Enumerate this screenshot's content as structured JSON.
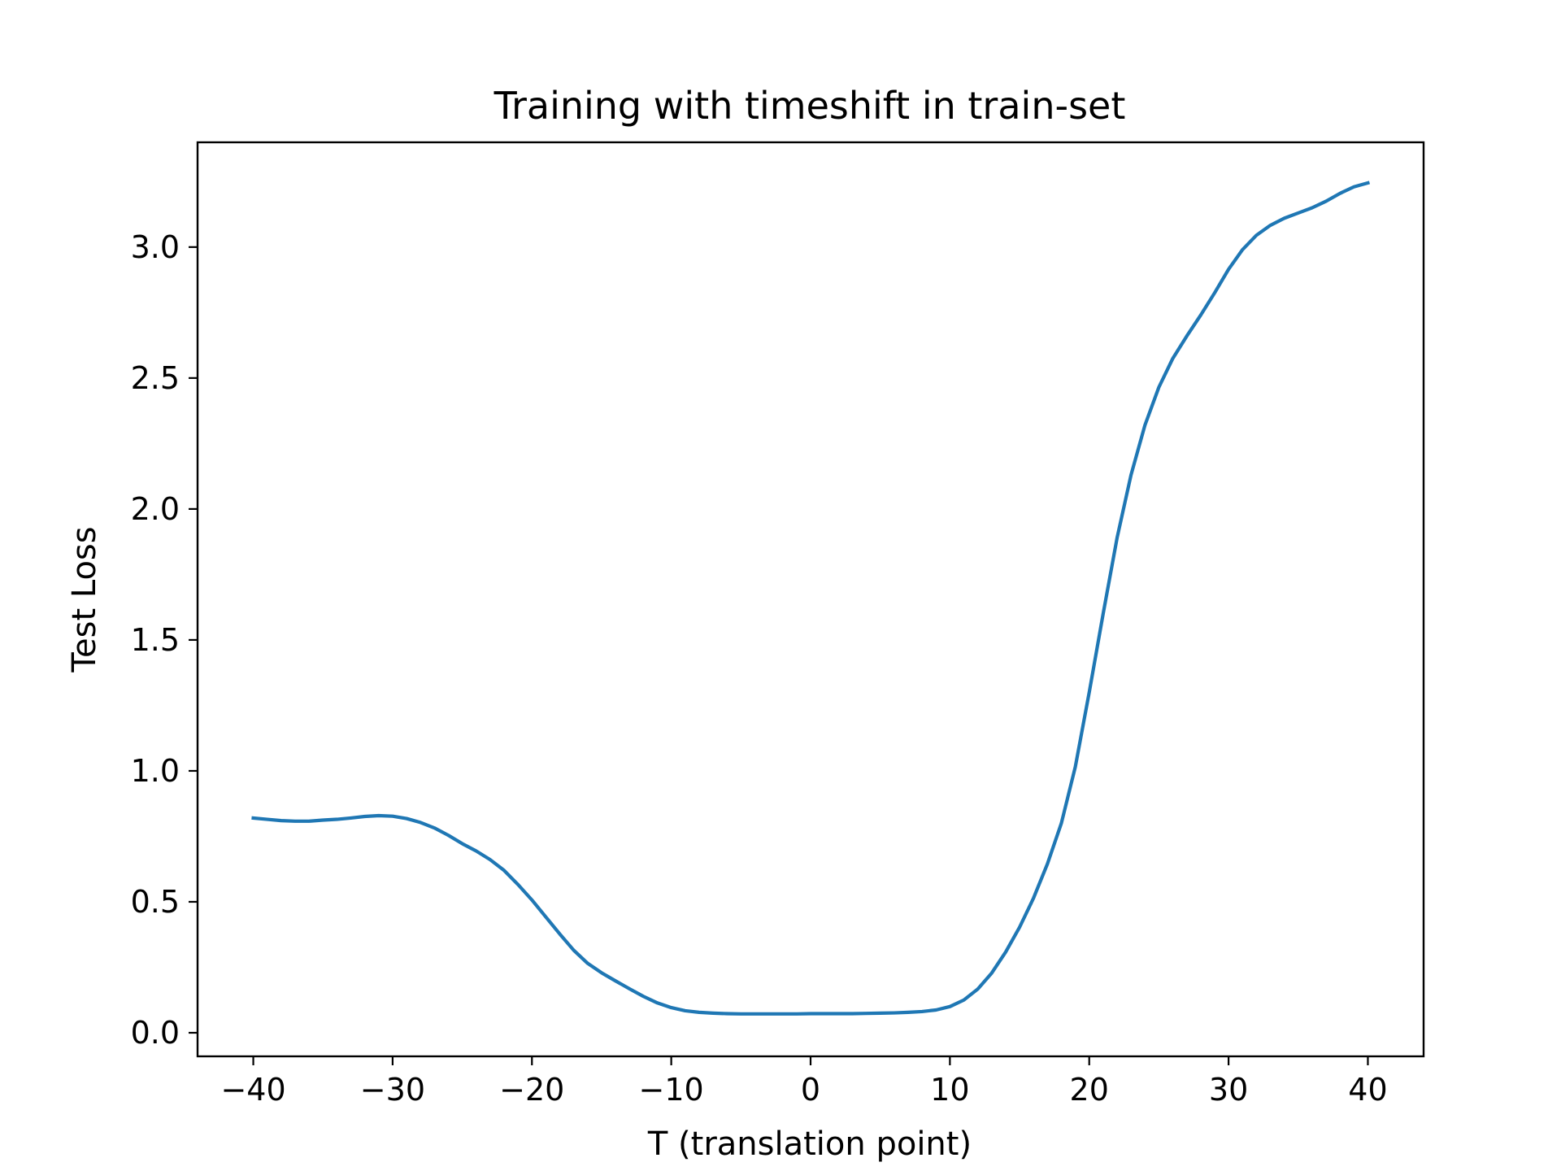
{
  "chart_data": {
    "type": "line",
    "title": "Training with timeshift in train-set",
    "xlabel": "T (translation point)",
    "ylabel": "Test Loss",
    "xlim": [
      -44,
      44
    ],
    "ylim": [
      -0.09,
      3.4
    ],
    "xticks": [
      -40,
      -30,
      -20,
      -10,
      0,
      10,
      20,
      30,
      40
    ],
    "xtick_labels": [
      "−40",
      "−30",
      "−20",
      "−10",
      "0",
      "10",
      "20",
      "30",
      "40"
    ],
    "yticks": [
      0.0,
      0.5,
      1.0,
      1.5,
      2.0,
      2.5,
      3.0
    ],
    "ytick_labels": [
      "0.0",
      "0.5",
      "1.0",
      "1.5",
      "2.0",
      "2.5",
      "3.0"
    ],
    "grid": false,
    "color": "#1f77b4",
    "series": [
      {
        "x": [
          -40,
          -39,
          -38,
          -37,
          -36,
          -35,
          -34,
          -33,
          -32,
          -31,
          -30,
          -29,
          -28,
          -27,
          -26,
          -25,
          -24,
          -23,
          -22,
          -21,
          -20,
          -19,
          -18,
          -17,
          -16,
          -15,
          -14,
          -13,
          -12,
          -11,
          -10,
          -9,
          -8,
          -7,
          -6,
          -5,
          -4,
          -3,
          -2,
          -1,
          0,
          1,
          2,
          3,
          4,
          5,
          6,
          7,
          8,
          9,
          10,
          11,
          12,
          13,
          14,
          15,
          16,
          17,
          18,
          19,
          20,
          21,
          22,
          23,
          24,
          25,
          26,
          27,
          28,
          29,
          30,
          31,
          32,
          33,
          34,
          35,
          36,
          37,
          38,
          39,
          40
        ],
        "y": [
          0.82,
          0.815,
          0.81,
          0.808,
          0.808,
          0.812,
          0.815,
          0.82,
          0.826,
          0.829,
          0.827,
          0.818,
          0.803,
          0.782,
          0.754,
          0.722,
          0.694,
          0.661,
          0.62,
          0.566,
          0.507,
          0.442,
          0.377,
          0.315,
          0.265,
          0.229,
          0.198,
          0.168,
          0.139,
          0.114,
          0.096,
          0.084,
          0.078,
          0.075,
          0.073,
          0.072,
          0.072,
          0.072,
          0.072,
          0.072,
          0.073,
          0.073,
          0.073,
          0.073,
          0.074,
          0.075,
          0.076,
          0.078,
          0.081,
          0.087,
          0.1,
          0.125,
          0.167,
          0.228,
          0.308,
          0.403,
          0.514,
          0.645,
          0.8,
          1.015,
          1.3,
          1.6,
          1.89,
          2.13,
          2.32,
          2.465,
          2.575,
          2.66,
          2.74,
          2.825,
          2.915,
          2.99,
          3.045,
          3.083,
          3.11,
          3.13,
          3.15,
          3.175,
          3.205,
          3.23,
          3.245
        ]
      }
    ]
  }
}
